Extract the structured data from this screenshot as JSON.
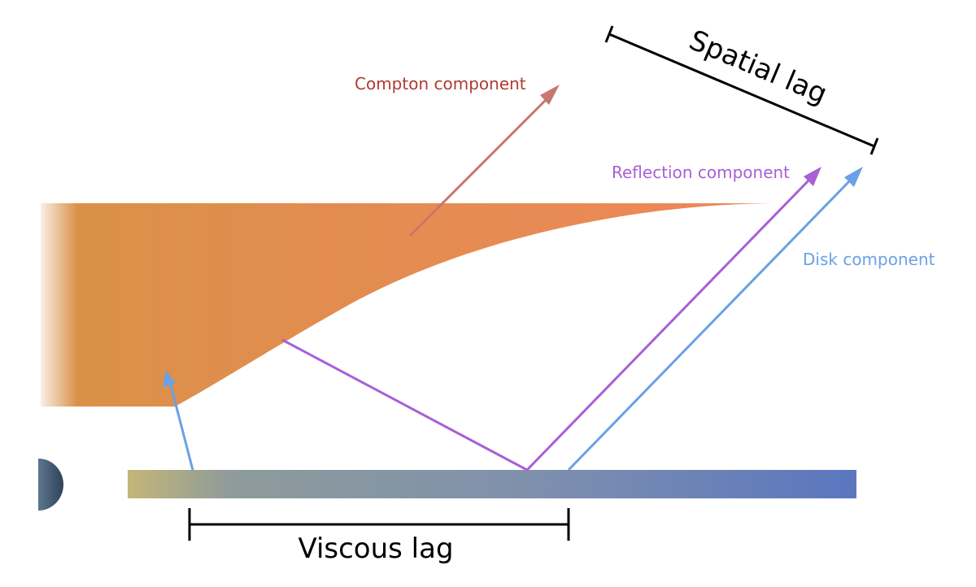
{
  "labels": {
    "compton": "Compton component",
    "reflection": "Reflection component",
    "disk": "Disk component",
    "spatial_lag": "Spatial lag",
    "viscous_lag": "Viscous lag"
  },
  "colors": {
    "compton_arrow": "#c87670",
    "compton_text": "#b03a32",
    "reflection": "#a95fd6",
    "disk": "#6aa1e6",
    "corona_left": "#d99148",
    "corona_right": "#ec8a5c",
    "disk_left": "#c2b57a",
    "disk_mid": "#8b9aa3",
    "disk_right": "#5d78bd",
    "black_hole": "#3f5670",
    "bracket": "#000000"
  }
}
